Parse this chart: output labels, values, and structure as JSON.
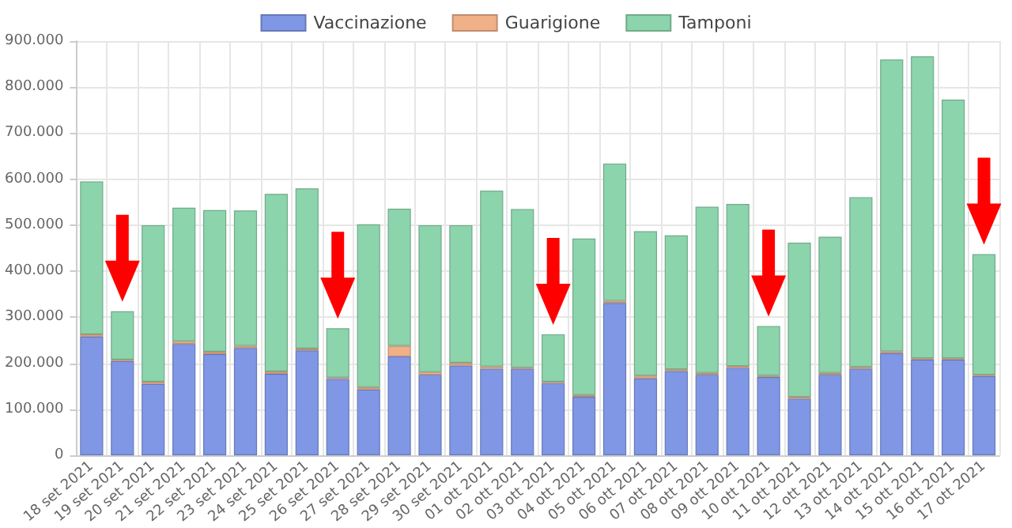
{
  "chart_data": {
    "type": "bar",
    "stacked": true,
    "grid": true,
    "legend": "top",
    "categories": [
      "18 set 2021",
      "19 set 2021",
      "20 set 2021",
      "21 set 2021",
      "22 set 2021",
      "23 set 2021",
      "24 set 2021",
      "25 set 2021",
      "26 set 2021",
      "27 set 2021",
      "28 set 2021",
      "29 set 2021",
      "30 set 2021",
      "01 ott 2021",
      "02 ott 2021",
      "03 ott 2021",
      "04 ott 2021",
      "05 ott 2021",
      "06 ott 2021",
      "07 ott 2021",
      "08 ott 2021",
      "09 ott 2021",
      "10 ott 2021",
      "11 ott 2021",
      "12 ott 2021",
      "13 ott 2021",
      "14 ott 2021",
      "15 ott 2021",
      "16 ott 2021",
      "17 ott 2021"
    ],
    "series": [
      {
        "name": "Vaccinazione",
        "color": "#8097e6",
        "values": [
          258000,
          205000,
          155000,
          242000,
          220000,
          233000,
          177000,
          228000,
          166000,
          143000,
          215000,
          175000,
          195000,
          188000,
          188000,
          157000,
          127000,
          331000,
          167000,
          183000,
          175000,
          190000,
          170000,
          123000,
          175000,
          188000,
          222000,
          208000,
          208000,
          172000
        ]
      },
      {
        "name": "Guarigione",
        "color": "#f0b088",
        "values": [
          5000,
          3000,
          5000,
          6000,
          5000,
          5000,
          5000,
          4000,
          3000,
          5000,
          23000,
          6000,
          6000,
          5000,
          3000,
          3000,
          4000,
          5000,
          6000,
          4000,
          4000,
          4000,
          3000,
          4000,
          4000,
          4000,
          4000,
          3000,
          3000,
          3000
        ]
      },
      {
        "name": "Tamponi",
        "color": "#8cd4ac",
        "values": [
          332000,
          105000,
          340000,
          290000,
          308000,
          294000,
          386000,
          348000,
          107000,
          354000,
          298000,
          319000,
          299000,
          382000,
          344000,
          103000,
          340000,
          298000,
          314000,
          291000,
          361000,
          352000,
          108000,
          335000,
          296000,
          369000,
          634000,
          656000,
          562000,
          262000
        ]
      }
    ],
    "ylim": [
      0,
      900000
    ],
    "yticks": [
      {
        "value": 0,
        "label": "0"
      },
      {
        "value": 100000,
        "label": "100.000"
      },
      {
        "value": 200000,
        "label": "200.000"
      },
      {
        "value": 300000,
        "label": "300.000"
      },
      {
        "value": 400000,
        "label": "400.000"
      },
      {
        "value": 500000,
        "label": "500.000"
      },
      {
        "value": 600000,
        "label": "600.000"
      },
      {
        "value": 700000,
        "label": "700.000"
      },
      {
        "value": 800000,
        "label": "800.000"
      },
      {
        "value": 900000,
        "label": "900.000"
      }
    ]
  }
}
